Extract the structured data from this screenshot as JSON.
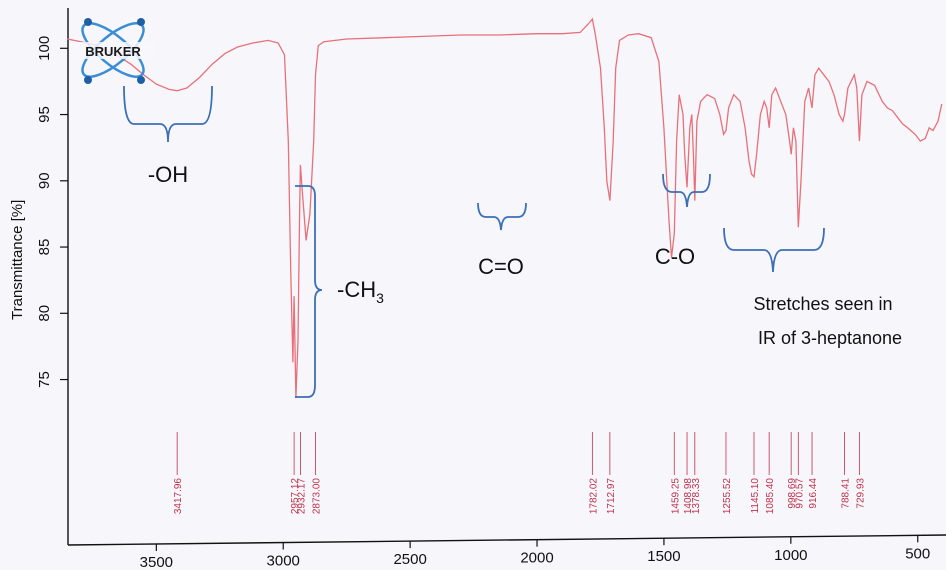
{
  "chart_data": {
    "type": "line",
    "ylabel": "Transmittance [%]",
    "xlim": [
      3850,
      400
    ],
    "ylim": [
      67.5,
      102
    ],
    "x_ticks": [
      3500,
      3000,
      2500,
      2000,
      1500,
      1000,
      500
    ],
    "y_ticks": [
      100,
      95,
      90,
      85,
      80,
      75
    ],
    "grid": false,
    "line_color": "#e8707a",
    "series": [
      {
        "points": [
          [
            3850,
            100.7
          ],
          [
            3750,
            100.3
          ],
          [
            3650,
            99.4
          ],
          [
            3600,
            98.8
          ],
          [
            3550,
            98.0
          ],
          [
            3500,
            97.3
          ],
          [
            3450,
            96.9
          ],
          [
            3417.96,
            96.8
          ],
          [
            3380,
            97.0
          ],
          [
            3330,
            97.8
          ],
          [
            3280,
            98.8
          ],
          [
            3230,
            99.6
          ],
          [
            3180,
            100.1
          ],
          [
            3120,
            100.4
          ],
          [
            3060,
            100.6
          ],
          [
            3020,
            100.4
          ],
          [
            2995,
            99.5
          ],
          [
            2980,
            93.0
          ],
          [
            2970,
            83.0
          ],
          [
            2962,
            76.3
          ],
          [
            2957.12,
            81.3
          ],
          [
            2950,
            73.6
          ],
          [
            2942,
            78.0
          ],
          [
            2936,
            87.0
          ],
          [
            2932.17,
            91.2
          ],
          [
            2926,
            89.5
          ],
          [
            2910,
            85.5
          ],
          [
            2895,
            87.5
          ],
          [
            2880,
            93.0
          ],
          [
            2873.0,
            98.0
          ],
          [
            2862,
            100.2
          ],
          [
            2840,
            100.5
          ],
          [
            2750,
            100.7
          ],
          [
            2600,
            100.8
          ],
          [
            2450,
            100.9
          ],
          [
            2300,
            101.0
          ],
          [
            2150,
            101.0
          ],
          [
            2000,
            101.1
          ],
          [
            1900,
            101.1
          ],
          [
            1830,
            101.2
          ],
          [
            1800,
            101.8
          ],
          [
            1782.02,
            102.2
          ],
          [
            1770,
            101.0
          ],
          [
            1750,
            98.5
          ],
          [
            1735,
            94.0
          ],
          [
            1725,
            90.0
          ],
          [
            1712.97,
            88.5
          ],
          [
            1700,
            93.0
          ],
          [
            1690,
            98.5
          ],
          [
            1675,
            100.6
          ],
          [
            1640,
            101.0
          ],
          [
            1600,
            101.1
          ],
          [
            1550,
            100.8
          ],
          [
            1520,
            99.0
          ],
          [
            1500,
            94.0
          ],
          [
            1480,
            87.0
          ],
          [
            1470,
            84.2
          ],
          [
            1459.25,
            86.0
          ],
          [
            1450,
            93.0
          ],
          [
            1440,
            96.5
          ],
          [
            1425,
            95.0
          ],
          [
            1418,
            92.0
          ],
          [
            1408.98,
            89.5
          ],
          [
            1398,
            94.0
          ],
          [
            1390,
            95.0
          ],
          [
            1384,
            92.0
          ],
          [
            1378.33,
            88.5
          ],
          [
            1370,
            94.5
          ],
          [
            1355,
            96.0
          ],
          [
            1330,
            96.5
          ],
          [
            1300,
            96.2
          ],
          [
            1280,
            95.0
          ],
          [
            1265,
            93.5
          ],
          [
            1255.52,
            93.8
          ],
          [
            1245,
            95.5
          ],
          [
            1225,
            96.5
          ],
          [
            1200,
            96.0
          ],
          [
            1180,
            94.0
          ],
          [
            1165,
            91.5
          ],
          [
            1155,
            90.5
          ],
          [
            1145.1,
            90.3
          ],
          [
            1135,
            92.0
          ],
          [
            1120,
            95.0
          ],
          [
            1105,
            96.0
          ],
          [
            1095,
            95.5
          ],
          [
            1085.4,
            94.0
          ],
          [
            1075,
            96.5
          ],
          [
            1060,
            97.0
          ],
          [
            1040,
            96.0
          ],
          [
            1020,
            95.0
          ],
          [
            1005,
            93.0
          ],
          [
            998.69,
            92.0
          ],
          [
            990,
            94.0
          ],
          [
            980,
            93.0
          ],
          [
            970.57,
            86.5
          ],
          [
            960,
            90.0
          ],
          [
            945,
            96.0
          ],
          [
            930,
            97.0
          ],
          [
            916.44,
            95.5
          ],
          [
            905,
            98.0
          ],
          [
            890,
            98.5
          ],
          [
            870,
            98.0
          ],
          [
            850,
            97.5
          ],
          [
            830,
            96.5
          ],
          [
            810,
            95.0
          ],
          [
            795,
            94.5
          ],
          [
            788.41,
            95.0
          ],
          [
            775,
            97.0
          ],
          [
            750,
            98.0
          ],
          [
            740,
            97.0
          ],
          [
            729.93,
            93.0
          ],
          [
            720,
            96.5
          ],
          [
            700,
            97.5
          ],
          [
            670,
            97.2
          ],
          [
            640,
            96.0
          ],
          [
            620,
            95.5
          ],
          [
            600,
            95.3
          ],
          [
            580,
            94.8
          ],
          [
            560,
            94.3
          ],
          [
            540,
            94.0
          ],
          [
            510,
            93.5
          ],
          [
            490,
            93.0
          ],
          [
            470,
            93.2
          ],
          [
            455,
            94.0
          ],
          [
            440,
            93.8
          ],
          [
            420,
            94.5
          ],
          [
            405,
            95.8
          ]
        ]
      }
    ],
    "peak_labels": [
      "3417.96",
      "2957.12",
      "2932.17",
      "2873.00",
      "1782.02",
      "1712.97",
      "1459.25",
      "1408.98",
      "1378.33",
      "1255.52",
      "1145.10",
      "1085.40",
      "998.69",
      "970.57",
      "916.44",
      "788.41",
      "729.93"
    ],
    "peak_positions": [
      3417.96,
      2957.12,
      2932.17,
      2873.0,
      1782.02,
      1712.97,
      1459.25,
      1408.98,
      1378.33,
      1255.52,
      1145.1,
      1085.4,
      998.69,
      970.57,
      916.44,
      788.41,
      729.93
    ],
    "annotations": [
      {
        "text": "-OH"
      },
      {
        "text": "-CH",
        "sub": "3"
      },
      {
        "text": "C=O"
      },
      {
        "text": "C-O"
      },
      {
        "text": "Stretches seen in"
      },
      {
        "text": "IR of 3-heptanone"
      }
    ]
  },
  "logo": {
    "text": "BRUKER"
  },
  "colors": {
    "spectrum": "#e8707a",
    "peak_marker": "#c0304a",
    "bracket": "#3b6fb6",
    "axis": "#111111"
  }
}
